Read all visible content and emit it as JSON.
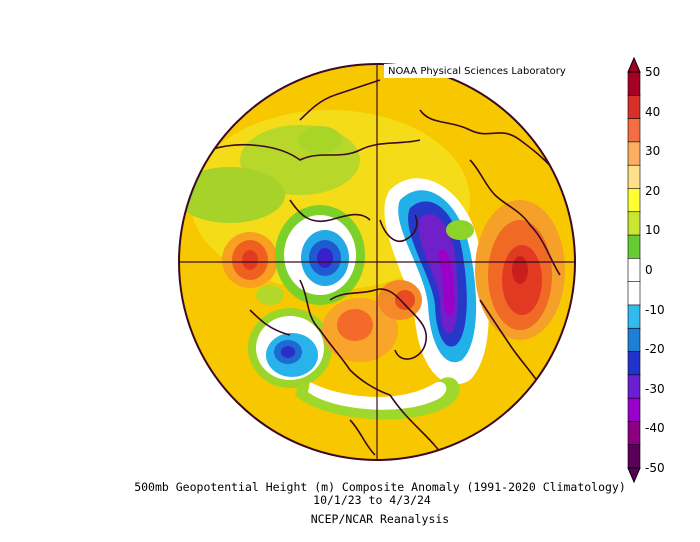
{
  "header": {
    "credit": "NOAA Physical Sciences Laboratory"
  },
  "caption": {
    "line1": "500mb Geopotential Height (m) Composite Anomaly (1991-2020 Climatology)",
    "line2": "10/1/23  to 4/3/24",
    "line3": "NCEP/NCAR Reanalysis"
  },
  "colorbar": {
    "labels": [
      "50",
      "40",
      "30",
      "20",
      "10",
      "0",
      "-10",
      "-20",
      "-30",
      "-40",
      "-50"
    ],
    "colors": [
      "#a50026",
      "#d73027",
      "#f46d43",
      "#fdae61",
      "#fee08b",
      "#ffff33",
      "#c8e632",
      "#66cc33",
      "#ffffff",
      "#ffffff",
      "#33bbee",
      "#1e7fd6",
      "#2233cc",
      "#6a1fd1",
      "#9a00cc",
      "#8b0080",
      "#5a005a"
    ]
  },
  "map": {
    "projection": "north-polar-stereographic",
    "background_anomaly_color": "#fbd000",
    "features": [
      {
        "name": "eastern-europe-high",
        "sign": "positive"
      },
      {
        "name": "north-pacific-high",
        "sign": "positive"
      },
      {
        "name": "canada-high",
        "sign": "positive"
      },
      {
        "name": "northwest-atlantic-high",
        "sign": "positive"
      },
      {
        "name": "north-atlantic-low",
        "sign": "negative"
      },
      {
        "name": "siberia-low",
        "sign": "negative"
      },
      {
        "name": "gulf-of-alaska-low",
        "sign": "negative"
      }
    ]
  }
}
